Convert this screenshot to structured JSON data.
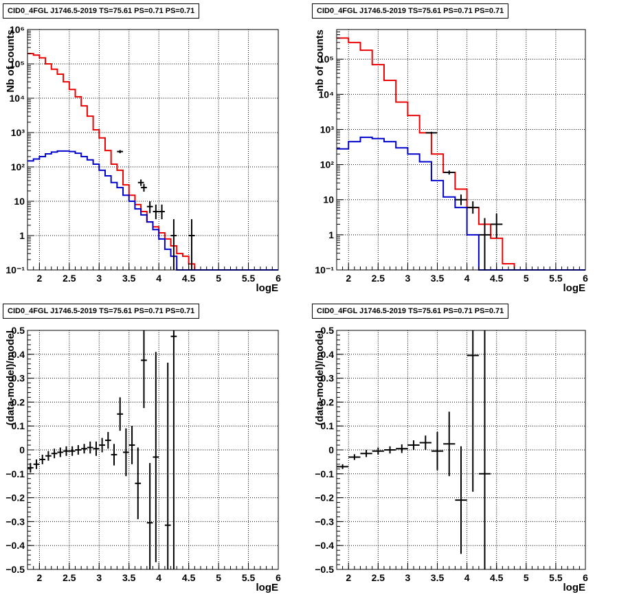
{
  "chart_data": [
    {
      "type": "histogram",
      "title": "CID0_4FGL J1746.5-2019 TS=75.61 PS=0.71 PS=0.71",
      "xlabel": "logE",
      "ylabel": "Nb of counts",
      "xlim": [
        1.8,
        6.0
      ],
      "ylim": [
        0.1,
        1000000
      ],
      "yscale": "log",
      "grid": true,
      "x_ticks": [
        "2",
        "2.5",
        "3",
        "3.5",
        "4",
        "4.5",
        "5",
        "5.5",
        "6"
      ],
      "y_ticks": [
        "10⁻¹",
        "1",
        "10",
        "10²",
        "10³",
        "10⁴",
        "10⁵",
        "10⁶"
      ],
      "bin_width": 0.1,
      "series": [
        {
          "color": "#ee0000",
          "style": "step",
          "x": [
            1.8,
            1.9,
            2.0,
            2.1,
            2.2,
            2.3,
            2.4,
            2.5,
            2.6,
            2.7,
            2.8,
            2.9,
            3.0,
            3.1,
            3.2,
            3.3,
            3.4,
            3.5,
            3.6,
            3.7,
            3.8,
            3.9,
            4.0,
            4.1,
            4.2,
            4.3,
            4.4,
            4.5,
            4.6,
            4.7,
            4.8,
            4.9,
            5.0,
            5.1,
            5.2,
            5.3,
            5.4,
            5.5,
            5.6,
            5.7,
            5.8,
            5.9
          ],
          "values": [
            200000,
            180000,
            150000,
            100000,
            70000,
            50000,
            30000,
            18000,
            11000,
            6000,
            3000,
            1200,
            700,
            300,
            120,
            80,
            30,
            15,
            8,
            5,
            2.5,
            1.8,
            1.2,
            0.8,
            0.5,
            0.3,
            0.25,
            0.15,
            0.1,
            0.1,
            0.1,
            0.1,
            0.1,
            0.1,
            0.1,
            0.1,
            0.1,
            0.1,
            0.1,
            0.1,
            0.1,
            0.1
          ]
        },
        {
          "color": "#0000cc",
          "style": "step",
          "x": [
            1.8,
            1.9,
            2.0,
            2.1,
            2.2,
            2.3,
            2.4,
            2.5,
            2.6,
            2.7,
            2.8,
            2.9,
            3.0,
            3.1,
            3.2,
            3.3,
            3.4,
            3.5,
            3.6,
            3.7,
            3.8,
            3.9,
            4.0,
            4.1,
            4.2,
            4.3,
            4.4,
            4.5,
            4.6,
            4.7,
            4.8,
            4.9,
            5.0,
            5.1,
            5.2,
            5.3,
            5.4,
            5.5,
            5.6,
            5.7,
            5.8,
            5.9
          ],
          "values": [
            150,
            170,
            200,
            240,
            270,
            290,
            290,
            280,
            250,
            200,
            160,
            120,
            80,
            55,
            35,
            25,
            15,
            10,
            6,
            4,
            2.5,
            1.5,
            0.8,
            0.4,
            0.25,
            0.1,
            0.1,
            0.1,
            0.1,
            0.1,
            0.1,
            0.1,
            0.1,
            0.1,
            0.1,
            0.1,
            0.1,
            0.1,
            0.1,
            0.1,
            0.1,
            0.1
          ]
        },
        {
          "color": "#000000",
          "style": "errorbars",
          "points": [
            {
              "x": 3.35,
              "y": 280,
              "xerr": 0.05,
              "ylo": 250,
              "yhi": 310
            },
            {
              "x": 3.7,
              "y": 35,
              "xerr": 0.05,
              "ylo": 28,
              "yhi": 43
            },
            {
              "x": 3.75,
              "y": 25,
              "xerr": 0.05,
              "ylo": 19,
              "yhi": 32
            },
            {
              "x": 3.85,
              "y": 7,
              "xerr": 0.05,
              "ylo": 4.5,
              "yhi": 10
            },
            {
              "x": 3.95,
              "y": 5,
              "xerr": 0.05,
              "ylo": 3,
              "yhi": 8
            },
            {
              "x": 4.05,
              "y": 5,
              "xerr": 0.05,
              "ylo": 3,
              "yhi": 8
            },
            {
              "x": 4.25,
              "y": 1,
              "xerr": 0.05,
              "ylo": 0.1,
              "yhi": 3
            },
            {
              "x": 4.55,
              "y": 1,
              "xerr": 0.05,
              "ylo": 0.1,
              "yhi": 3
            }
          ]
        }
      ]
    },
    {
      "type": "histogram",
      "title": "CID0_4FGL J1746.5-2019 TS=75.61 PS=0.71 PS=0.71",
      "xlabel": "logE",
      "ylabel": "nb of counts",
      "xlim": [
        1.8,
        6.0
      ],
      "ylim": [
        0.1,
        700000
      ],
      "yscale": "log",
      "grid": true,
      "x_ticks": [
        "2",
        "2.5",
        "3",
        "3.5",
        "4",
        "4.5",
        "5",
        "5.5",
        "6"
      ],
      "y_ticks": [
        "10⁻¹",
        "1",
        "10",
        "10²",
        "10³",
        "10⁴",
        "10⁵"
      ],
      "bin_width": 0.2,
      "series": [
        {
          "color": "#ee0000",
          "style": "step",
          "x": [
            1.8,
            2.0,
            2.2,
            2.4,
            2.6,
            2.8,
            3.0,
            3.2,
            3.4,
            3.6,
            3.8,
            4.0,
            4.2,
            4.4,
            4.6,
            4.8,
            5.0,
            5.2,
            5.4,
            5.6,
            5.8
          ],
          "values": [
            400000,
            300000,
            180000,
            70000,
            25000,
            6000,
            2500,
            800,
            200,
            60,
            20,
            6,
            2,
            0.8,
            0.15,
            0.1,
            0.1,
            0.1,
            0.1,
            0.1,
            0.1
          ]
        },
        {
          "color": "#0000cc",
          "style": "step",
          "x": [
            1.8,
            2.0,
            2.2,
            2.4,
            2.6,
            2.8,
            3.0,
            3.2,
            3.4,
            3.6,
            3.8,
            4.0,
            4.2,
            4.4,
            4.6,
            4.8,
            5.0,
            5.2,
            5.4,
            5.6,
            5.8
          ],
          "values": [
            280,
            450,
            600,
            550,
            450,
            300,
            200,
            120,
            35,
            12,
            6,
            1,
            0.1,
            0.1,
            0.1,
            0.1,
            0.1,
            0.1,
            0.1,
            0.1,
            0.1
          ]
        },
        {
          "color": "#000000",
          "style": "errorbars",
          "points": [
            {
              "x": 3.4,
              "y": 800,
              "xerr": 0.1,
              "ylo": 750,
              "yhi": 860
            },
            {
              "x": 3.7,
              "y": 60,
              "xerr": 0.1,
              "ylo": 52,
              "yhi": 68
            },
            {
              "x": 3.9,
              "y": 10,
              "xerr": 0.1,
              "ylo": 7,
              "yhi": 14
            },
            {
              "x": 4.1,
              "y": 6,
              "xerr": 0.1,
              "ylo": 4,
              "yhi": 9
            },
            {
              "x": 4.3,
              "y": 1,
              "xerr": 0.1,
              "ylo": 0.1,
              "yhi": 3
            },
            {
              "x": 4.5,
              "y": 2,
              "xerr": 0.1,
              "ylo": 0.8,
              "yhi": 4
            }
          ]
        }
      ]
    },
    {
      "type": "scatter",
      "title": "CID0_4FGL J1746.5-2019 TS=75.61 PS=0.71 PS=0.71",
      "xlabel": "logE",
      "ylabel": "(data-model)/model",
      "xlim": [
        1.8,
        6.0
      ],
      "ylim": [
        -0.5,
        0.5
      ],
      "grid": true,
      "x_ticks": [
        "2",
        "2.5",
        "3",
        "3.5",
        "4",
        "4.5",
        "5",
        "5.5",
        "6"
      ],
      "y_ticks": [
        "−0.5",
        "−0.4",
        "−0.3",
        "−0.2",
        "−0.1",
        "0",
        "0.1",
        "0.2",
        "0.3",
        "0.4",
        "0.5"
      ],
      "points": [
        {
          "x": 1.85,
          "y": -0.075,
          "xerr": 0.05,
          "yerr": 0.02
        },
        {
          "x": 1.95,
          "y": -0.06,
          "xerr": 0.05,
          "yerr": 0.02
        },
        {
          "x": 2.05,
          "y": -0.04,
          "xerr": 0.05,
          "yerr": 0.02
        },
        {
          "x": 2.15,
          "y": -0.025,
          "xerr": 0.05,
          "yerr": 0.02
        },
        {
          "x": 2.25,
          "y": -0.015,
          "xerr": 0.05,
          "yerr": 0.02
        },
        {
          "x": 2.35,
          "y": -0.01,
          "xerr": 0.05,
          "yerr": 0.02
        },
        {
          "x": 2.45,
          "y": -0.005,
          "xerr": 0.05,
          "yerr": 0.02
        },
        {
          "x": 2.55,
          "y": -0.005,
          "xerr": 0.05,
          "yerr": 0.02
        },
        {
          "x": 2.65,
          "y": 0.0,
          "xerr": 0.05,
          "yerr": 0.02
        },
        {
          "x": 2.75,
          "y": 0.005,
          "xerr": 0.05,
          "yerr": 0.02
        },
        {
          "x": 2.85,
          "y": 0.01,
          "xerr": 0.05,
          "yerr": 0.025
        },
        {
          "x": 2.95,
          "y": 0.005,
          "xerr": 0.05,
          "yerr": 0.03
        },
        {
          "x": 3.05,
          "y": 0.02,
          "xerr": 0.05,
          "yerr": 0.03
        },
        {
          "x": 3.15,
          "y": 0.04,
          "xerr": 0.05,
          "yerr": 0.035
        },
        {
          "x": 3.25,
          "y": -0.02,
          "xerr": 0.05,
          "yerr": 0.045
        },
        {
          "x": 3.35,
          "y": 0.15,
          "xerr": 0.05,
          "yerr": 0.07
        },
        {
          "x": 3.45,
          "y": -0.01,
          "xerr": 0.05,
          "yerr": 0.1
        },
        {
          "x": 3.55,
          "y": 0.02,
          "xerr": 0.05,
          "yerr": 0.08
        },
        {
          "x": 3.65,
          "y": -0.14,
          "xerr": 0.05,
          "yerr": 0.15
        },
        {
          "x": 3.75,
          "y": 0.375,
          "xerr": 0.05,
          "yerr": 0.2
        },
        {
          "x": 3.85,
          "y": -0.305,
          "xerr": 0.05,
          "yerr": 0.25
        },
        {
          "x": 3.95,
          "y": -0.03,
          "xerr": 0.05,
          "yerr": 0.44
        },
        {
          "x": 4.15,
          "y": -0.315,
          "xerr": 0.05,
          "yerr": 0.68
        },
        {
          "x": 4.25,
          "y": 0.475,
          "xerr": 0.05,
          "yerr": 1.0
        }
      ]
    },
    {
      "type": "scatter",
      "title": "CID0_4FGL J1746.5-2019 TS=75.61 PS=0.71 PS=0.71",
      "xlabel": "logE",
      "ylabel": "(data-model)/model",
      "xlim": [
        1.8,
        6.0
      ],
      "ylim": [
        -0.5,
        0.5
      ],
      "grid": true,
      "x_ticks": [
        "2",
        "2.5",
        "3",
        "3.5",
        "4",
        "4.5",
        "5",
        "5.5",
        "6"
      ],
      "y_ticks": [
        "−0.5",
        "−0.4",
        "−0.3",
        "−0.2",
        "−0.1",
        "0",
        "0.1",
        "0.2",
        "0.3",
        "0.4",
        "0.5"
      ],
      "points": [
        {
          "x": 1.9,
          "y": -0.07,
          "xerr": 0.1,
          "yerr": 0.01
        },
        {
          "x": 2.1,
          "y": -0.03,
          "xerr": 0.1,
          "yerr": 0.012
        },
        {
          "x": 2.3,
          "y": -0.015,
          "xerr": 0.1,
          "yerr": 0.015
        },
        {
          "x": 2.5,
          "y": -0.005,
          "xerr": 0.1,
          "yerr": 0.015
        },
        {
          "x": 2.7,
          "y": 0.0,
          "xerr": 0.1,
          "yerr": 0.015
        },
        {
          "x": 2.9,
          "y": 0.005,
          "xerr": 0.1,
          "yerr": 0.018
        },
        {
          "x": 3.1,
          "y": 0.02,
          "xerr": 0.1,
          "yerr": 0.02
        },
        {
          "x": 3.3,
          "y": 0.03,
          "xerr": 0.1,
          "yerr": 0.03
        },
        {
          "x": 3.5,
          "y": -0.005,
          "xerr": 0.1,
          "yerr": 0.08
        },
        {
          "x": 3.7,
          "y": 0.025,
          "xerr": 0.1,
          "yerr": 0.135
        },
        {
          "x": 3.9,
          "y": -0.21,
          "xerr": 0.1,
          "yerr": 0.225
        },
        {
          "x": 4.1,
          "y": 0.395,
          "xerr": 0.1,
          "yerr": 0.57
        },
        {
          "x": 4.3,
          "y": -0.1,
          "xerr": 0.1,
          "yerr": 0.9
        }
      ]
    }
  ]
}
